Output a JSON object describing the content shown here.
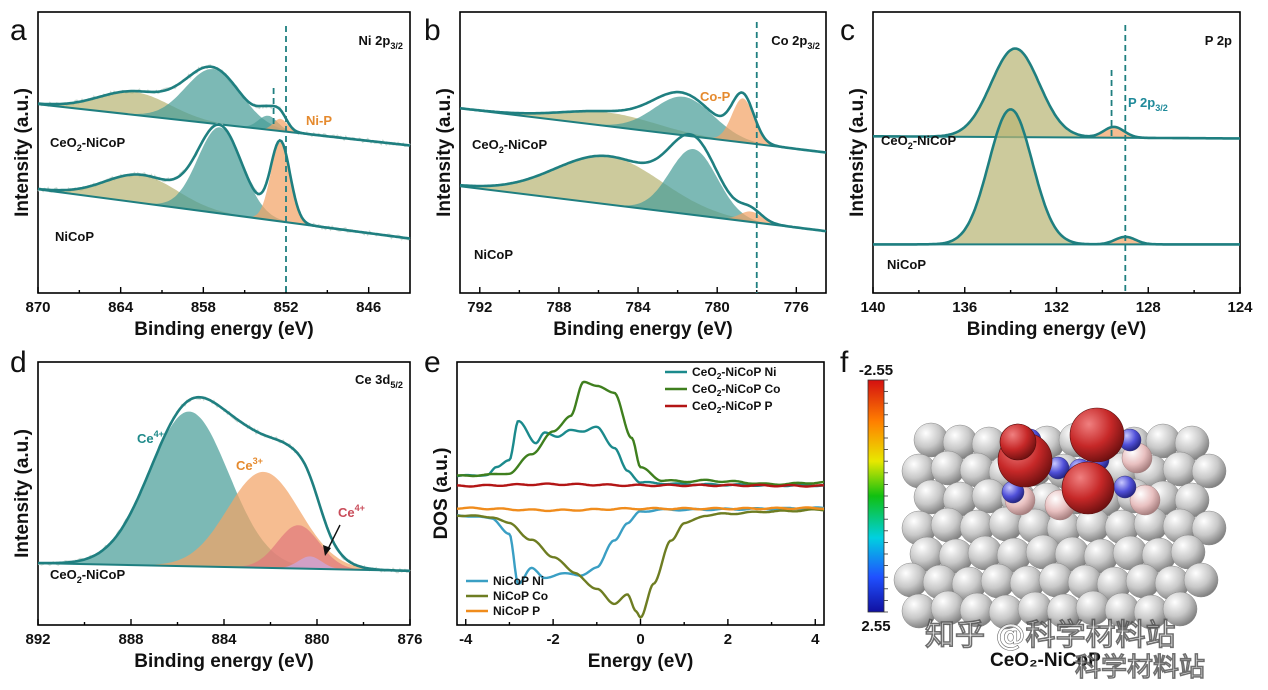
{
  "panels": [
    {
      "letter": "a",
      "title_main": "Ni 2p",
      "title_sub": "3/2",
      "xlabel": "Binding energy (eV)",
      "ylabel": "Intensity (a.u.)",
      "annotation": "Ni-P",
      "sample_labels": [
        {
          "main": "CeO",
          "sub": "2",
          "rest": "-NiCoP"
        },
        {
          "main": "NiCoP",
          "sub": "",
          "rest": ""
        }
      ]
    },
    {
      "letter": "b",
      "title_main": "Co 2p",
      "title_sub": "3/2",
      "xlabel": "Binding energy (eV)",
      "ylabel": "Intensity (a.u.)",
      "annotation": "Co-P",
      "sample_labels": [
        {
          "main": "CeO",
          "sub": "2",
          "rest": "-NiCoP"
        },
        {
          "main": "NiCoP",
          "sub": "",
          "rest": ""
        }
      ]
    },
    {
      "letter": "c",
      "title_main": "P 2p",
      "title_sub": "",
      "xlabel": "Binding energy (eV)",
      "ylabel": "Intensity (a.u.)",
      "annotation_main": "P 2p",
      "annotation_sub": "3/2",
      "sample_labels": [
        {
          "main": "CeO",
          "sub": "2",
          "rest": "-NiCoP"
        },
        {
          "main": "NiCoP",
          "sub": "",
          "rest": ""
        }
      ]
    },
    {
      "letter": "d",
      "title_main": "Ce 3d",
      "title_sub": "5/2",
      "xlabel": "Binding energy (eV)",
      "ylabel": "Intensity (a.u.)",
      "peak_labels": [
        {
          "main": "Ce",
          "sup": "4+"
        },
        {
          "main": "Ce",
          "sup": "3+"
        },
        {
          "main": "Ce",
          "sup": "4+"
        }
      ],
      "sample_labels": [
        {
          "main": "CeO",
          "sub": "2",
          "rest": "-NiCoP"
        }
      ]
    },
    {
      "letter": "e",
      "xlabel": "Energy (eV)",
      "ylabel": "DOS (a.u.)"
    },
    {
      "letter": "f",
      "scale_top": "-2.55",
      "scale_bottom": "2.55",
      "caption": "CeO₂-NiCoP"
    }
  ],
  "watermark": {
    "line1": "知乎 @科学材料站",
    "line2": "科学材料站"
  },
  "colors": {
    "envelope": "#1f7f80",
    "olive_fill": "#b8b576",
    "teal_fill": "#4a9e99",
    "orange_fill": "#f3a466",
    "pink_fill": "#e0787d",
    "violet_fill": "#c9a8e0",
    "ni_line": "#3a9fc4",
    "co_line": "#6e7d22",
    "p_line": "#f08c1c",
    "ce_ni": "#1b8a8c",
    "ce_co": "#3f7f1e",
    "ce_p": "#b31515",
    "dashed": "#1f7f80"
  },
  "chart_data": [
    {
      "type": "line",
      "title": "Ni 2p3/2",
      "xlabel": "Binding energy (eV)",
      "ylabel": "Intensity (a.u.)",
      "xlim": [
        870,
        843
      ],
      "xticks": [
        870,
        864,
        858,
        852,
        846
      ],
      "marker_line_x": 852,
      "series": [
        {
          "name": "CeO2-NiCoP",
          "baseline": [
            [
              870,
              1.55
            ],
            [
              843,
              1.08
            ]
          ],
          "peaks": [
            {
              "center": 863.0,
              "height": 0.26,
              "width": 2.6,
              "fill": "olive"
            },
            {
              "center": 857.3,
              "height": 0.62,
              "width": 2.0,
              "fill": "teal"
            },
            {
              "center": 853.3,
              "height": 0.16,
              "width": 0.7,
              "fill": "teal"
            },
            {
              "center": 852.4,
              "height": 0.14,
              "width": 0.5,
              "fill": "orange"
            }
          ]
        },
        {
          "name": "NiCoP",
          "baseline": [
            [
              870,
              0.58
            ],
            [
              843,
              0.02
            ]
          ],
          "peaks": [
            {
              "center": 862.5,
              "height": 0.32,
              "width": 2.6,
              "fill": "olive"
            },
            {
              "center": 856.8,
              "height": 0.98,
              "width": 1.6,
              "fill": "teal"
            },
            {
              "center": 852.4,
              "height": 0.9,
              "width": 0.7,
              "fill": "orange"
            }
          ]
        }
      ]
    },
    {
      "type": "line",
      "title": "Co 2p3/2",
      "xlabel": "Binding energy (eV)",
      "ylabel": "Intensity (a.u.)",
      "xlim": [
        793,
        774.5
      ],
      "xticks": [
        792,
        788,
        784,
        780,
        776
      ],
      "marker_line_x": 778,
      "series": [
        {
          "name": "CeO2-NiCoP",
          "baseline": [
            [
              793,
              1.55
            ],
            [
              774.5,
              1.0
            ]
          ],
          "peaks": [
            {
              "center": 785.5,
              "height": 0.17,
              "width": 2.4,
              "fill": "olive"
            },
            {
              "center": 781.7,
              "height": 0.48,
              "width": 1.5,
              "fill": "teal"
            },
            {
              "center": 778.7,
              "height": 0.55,
              "width": 0.55,
              "fill": "orange"
            }
          ]
        },
        {
          "name": "NiCoP",
          "baseline": [
            [
              793,
              0.58
            ],
            [
              774.5,
              0.02
            ]
          ],
          "peaks": [
            {
              "center": 785.5,
              "height": 0.6,
              "width": 2.7,
              "fill": "olive"
            },
            {
              "center": 781.2,
              "height": 0.82,
              "width": 1.2,
              "fill": "teal"
            },
            {
              "center": 778.3,
              "height": 0.13,
              "width": 0.55,
              "fill": "orange"
            }
          ]
        }
      ]
    },
    {
      "type": "line",
      "title": "P 2p",
      "xlabel": "Binding energy (eV)",
      "ylabel": "Intensity (a.u.)",
      "xlim": [
        140,
        124
      ],
      "xticks": [
        140,
        136,
        132,
        128,
        124
      ],
      "marker_lines_x": [
        129.6,
        129.0
      ],
      "series": [
        {
          "name": "CeO2-NiCoP",
          "baseline": [
            [
              140,
              1.05
            ],
            [
              124,
              1.03
            ]
          ],
          "peaks": [
            {
              "center": 133.8,
              "height": 0.82,
              "width": 1.05,
              "fill": "olive"
            },
            {
              "center": 129.5,
              "height": 0.1,
              "width": 0.45,
              "fill": "orange"
            }
          ]
        },
        {
          "name": "NiCoP",
          "baseline": [
            [
              140,
              0.05
            ],
            [
              124,
              0.05
            ]
          ],
          "peaks": [
            {
              "center": 134.0,
              "height": 1.25,
              "width": 0.95,
              "fill": "olive"
            },
            {
              "center": 129.0,
              "height": 0.07,
              "width": 0.45,
              "fill": "orange"
            }
          ]
        }
      ]
    },
    {
      "type": "line",
      "title": "Ce 3d5/2",
      "xlabel": "Binding energy (eV)",
      "ylabel": "Intensity (a.u.)",
      "xlim": [
        892,
        876
      ],
      "xticks": [
        892,
        888,
        884,
        880,
        876
      ],
      "series": [
        {
          "name": "CeO2-NiCoP",
          "baseline": [
            [
              892,
              0.05
            ],
            [
              876,
              0.0
            ]
          ],
          "peaks": [
            {
              "center": 885.5,
              "height": 1.0,
              "width": 1.7,
              "fill": "teal",
              "label": "Ce4+"
            },
            {
              "center": 882.3,
              "height": 0.62,
              "width": 1.55,
              "fill": "orange",
              "label": "Ce3+"
            },
            {
              "center": 880.8,
              "height": 0.28,
              "width": 0.9,
              "fill": "pink",
              "label": "Ce4+"
            },
            {
              "center": 880.3,
              "height": 0.08,
              "width": 0.5,
              "fill": "violet"
            }
          ]
        }
      ]
    },
    {
      "type": "line",
      "title": "",
      "xlabel": "Energy (eV)",
      "ylabel": "DOS (a.u.)",
      "xlim": [
        -4.2,
        4.2
      ],
      "xticks": [
        -4,
        -2,
        0,
        2,
        4
      ],
      "legend": [
        {
          "name": "CeO2-NiCoP Ni",
          "color": "#1b8a8c",
          "placement": "top-right"
        },
        {
          "name": "CeO2-NiCoP Co",
          "color": "#3f7f1e",
          "placement": "top-right"
        },
        {
          "name": "CeO2-NiCoP P",
          "color": "#b31515",
          "placement": "top-right"
        },
        {
          "name": "NiCoP Ni",
          "color": "#3a9fc4",
          "placement": "bottom-left"
        },
        {
          "name": "NiCoP Co",
          "color": "#6e7d22",
          "placement": "bottom-left"
        },
        {
          "name": "NiCoP P",
          "color": "#f08c1c",
          "placement": "bottom-left"
        }
      ],
      "series": [
        {
          "name": "CeO2-NiCoP Ni",
          "color": "#1b8a8c",
          "x": [
            -4.2,
            -3.5,
            -3.3,
            -3.0,
            -2.8,
            -2.4,
            -2.2,
            -1.9,
            -1.6,
            -1.3,
            -1.0,
            -0.6,
            -0.3,
            0,
            1,
            2,
            3,
            4.2
          ],
          "y": [
            0.2,
            0.22,
            0.35,
            0.5,
            1.2,
            0.8,
            1.0,
            0.9,
            1.05,
            1.0,
            1.1,
            0.7,
            0.3,
            0.08,
            0.05,
            0.04,
            0.03,
            0.03
          ]
        },
        {
          "name": "CeO2-NiCoP Co",
          "color": "#3f7f1e",
          "x": [
            -4.2,
            -3.5,
            -3.0,
            -2.5,
            -2.0,
            -1.6,
            -1.3,
            -1.0,
            -0.6,
            -0.2,
            0,
            0.5,
            1,
            1.5,
            2,
            3,
            4.2
          ],
          "y": [
            0.2,
            0.22,
            0.25,
            0.6,
            1.0,
            1.3,
            1.9,
            1.85,
            1.7,
            0.9,
            0.35,
            0.12,
            0.1,
            0.12,
            0.1,
            0.05,
            0.08
          ]
        },
        {
          "name": "CeO2-NiCoP P",
          "color": "#b31515",
          "x": [
            -4.2,
            -2,
            0,
            2,
            4.2
          ],
          "y": [
            0.02,
            0.05,
            0.03,
            0.03,
            0.02
          ]
        },
        {
          "name": "NiCoP Ni",
          "color": "#3a9fc4",
          "x": [
            -4.2,
            -3.4,
            -3.0,
            -2.8,
            -2.5,
            -2.2,
            -1.8,
            -1.4,
            -1.0,
            -0.6,
            -0.3,
            0,
            0.5,
            1,
            2,
            3,
            4.2
          ],
          "y": [
            -0.15,
            -0.2,
            -0.5,
            -1.4,
            -1.1,
            -1.3,
            -1.2,
            -1.25,
            -1.1,
            -0.6,
            -0.3,
            -0.08,
            -0.05,
            -0.05,
            -0.04,
            -0.03,
            -0.02
          ]
        },
        {
          "name": "NiCoP Co",
          "color": "#6e7d22",
          "x": [
            -4.2,
            -3.4,
            -3.0,
            -2.5,
            -2.0,
            -1.5,
            -1.0,
            -0.6,
            -0.3,
            -0.1,
            0,
            0.3,
            0.7,
            1,
            1.5,
            2,
            3,
            4.2
          ],
          "y": [
            -0.15,
            -0.18,
            -0.3,
            -0.6,
            -0.9,
            -1.2,
            -1.5,
            -1.75,
            -1.6,
            -1.9,
            -2.0,
            -1.4,
            -0.6,
            -0.3,
            -0.15,
            -0.12,
            -0.08,
            -0.05
          ]
        },
        {
          "name": "NiCoP P",
          "color": "#f08c1c",
          "x": [
            -4.2,
            -2,
            0,
            2,
            4.2
          ],
          "y": [
            -0.02,
            -0.06,
            -0.03,
            -0.03,
            -0.02
          ]
        }
      ]
    }
  ]
}
